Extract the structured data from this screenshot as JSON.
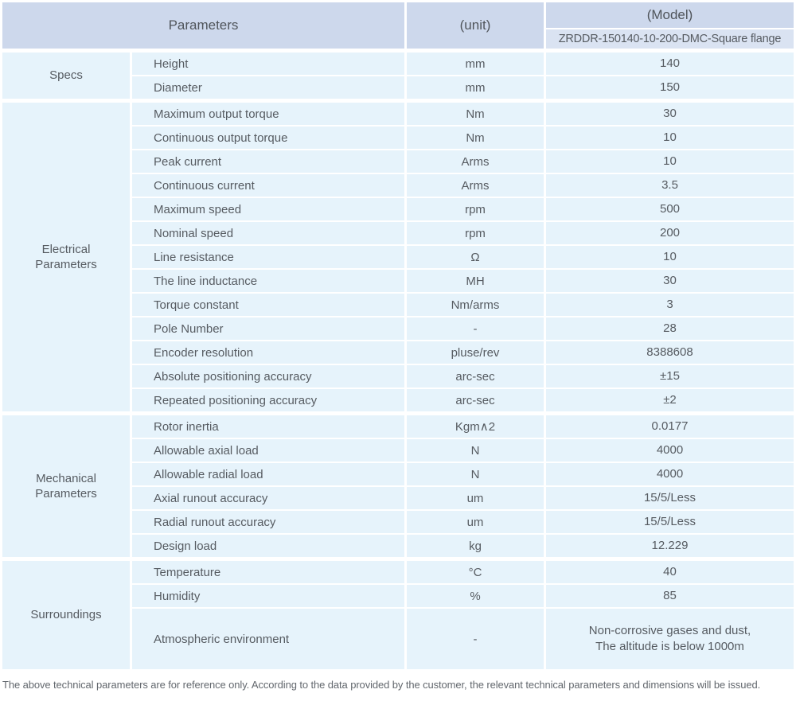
{
  "table": {
    "header": {
      "parameters_label": "Parameters",
      "unit_label": "(unit)",
      "model_label": "(Model)",
      "model_value": "ZRDDR-150140-10-200-DMC-Square flange"
    },
    "sections": [
      {
        "category": "Specs",
        "rows": [
          {
            "name": "Height",
            "unit": "mm",
            "value": "140"
          },
          {
            "name": "Diameter",
            "unit": "mm",
            "value": "150"
          }
        ]
      },
      {
        "category": "Electrical\nParameters",
        "rows": [
          {
            "name": "Maximum output torque",
            "unit": "Nm",
            "value": "30"
          },
          {
            "name": "Continuous output torque",
            "unit": "Nm",
            "value": "10"
          },
          {
            "name": "Peak current",
            "unit": "Arms",
            "value": "10"
          },
          {
            "name": "Continuous current",
            "unit": "Arms",
            "value": "3.5"
          },
          {
            "name": "Maximum speed",
            "unit": "rpm",
            "value": "500"
          },
          {
            "name": "Nominal speed",
            "unit": "rpm",
            "value": "200"
          },
          {
            "name": "Line resistance",
            "unit": "Ω",
            "value": "10"
          },
          {
            "name": "The line inductance",
            "unit": "MH",
            "value": "30"
          },
          {
            "name": "Torque constant",
            "unit": "Nm/arms",
            "value": "3"
          },
          {
            "name": "Pole Number",
            "unit": "-",
            "value": "28"
          },
          {
            "name": "Encoder resolution",
            "unit": "pluse/rev",
            "value": "8388608"
          },
          {
            "name": "Absolute positioning accuracy",
            "unit": "arc-sec",
            "value": "±15"
          },
          {
            "name": "Repeated positioning accuracy",
            "unit": "arc-sec",
            "value": "±2"
          }
        ]
      },
      {
        "category": "Mechanical\nParameters",
        "rows": [
          {
            "name": "Rotor inertia",
            "unit": "Kgm∧2",
            "value": "0.0177"
          },
          {
            "name": "Allowable axial load",
            "unit": "N",
            "value": "4000"
          },
          {
            "name": "Allowable radial load",
            "unit": "N",
            "value": "4000"
          },
          {
            "name": "Axial runout accuracy",
            "unit": "um",
            "value": "15/5/Less"
          },
          {
            "name": "Radial runout accuracy",
            "unit": "um",
            "value": "15/5/Less"
          },
          {
            "name": "Design load",
            "unit": "kg",
            "value": "12.229"
          }
        ]
      },
      {
        "category": "Surroundings",
        "rows": [
          {
            "name": "Temperature",
            "unit": "°C",
            "value": "40"
          },
          {
            "name": "Humidity",
            "unit": "%",
            "value": "85"
          },
          {
            "name": "Atmospheric environment",
            "unit": "-",
            "value": "Non-corrosive gases and dust,\nThe altitude is below 1000m"
          }
        ]
      }
    ],
    "footnote": "The above technical parameters are for reference only. According to the data provided by the customer, the relevant technical parameters and dimensions will be issued.",
    "colors": {
      "header_bg": "#cdd8ec",
      "subheader_bg": "#dae3f2",
      "row_bg": "#e6f3fb",
      "text": "#565b61"
    }
  }
}
